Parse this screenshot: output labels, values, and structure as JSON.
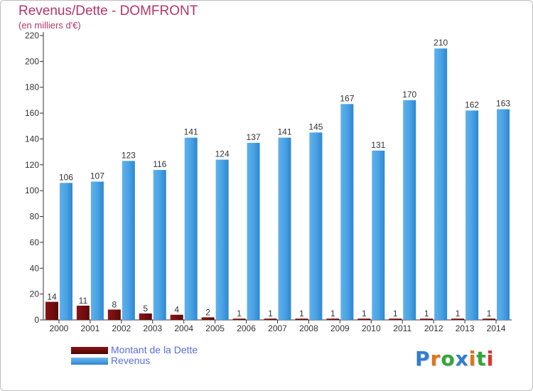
{
  "title": "Revenus/Dette - DOMFRONT",
  "subtitle": "(en milliers d'€)",
  "legend": {
    "debt_label": "Montant de la Dette",
    "revenue_label": "Revenus"
  },
  "logo_text": "Proxiti",
  "colors": {
    "title": "#b5356a",
    "debt": "#7a0f0f",
    "revenue": "#3a97dc",
    "legend_text": "#5b6fd6",
    "axis": "#333333"
  },
  "chart_data": {
    "type": "bar",
    "title": "Revenus/Dette - DOMFRONT",
    "subtitle": "(en milliers d'€)",
    "xlabel": "",
    "ylabel": "",
    "categories": [
      "2000",
      "2001",
      "2002",
      "2003",
      "2004",
      "2005",
      "2006",
      "2007",
      "2008",
      "2009",
      "2010",
      "2011",
      "2012",
      "2013",
      "2014"
    ],
    "series": [
      {
        "name": "Montant de la Dette",
        "values": [
          14,
          11,
          8,
          5,
          4,
          2,
          1,
          1,
          1,
          1,
          1,
          1,
          1,
          1,
          1
        ]
      },
      {
        "name": "Revenus",
        "values": [
          106,
          107,
          123,
          116,
          141,
          124,
          137,
          141,
          145,
          167,
          131,
          170,
          210,
          162,
          163
        ]
      }
    ],
    "ylim": [
      0,
      220
    ],
    "yticks": [
      0,
      20,
      40,
      60,
      80,
      100,
      120,
      140,
      160,
      180,
      200,
      220
    ],
    "grid": false,
    "legend_position": "bottom-left"
  }
}
